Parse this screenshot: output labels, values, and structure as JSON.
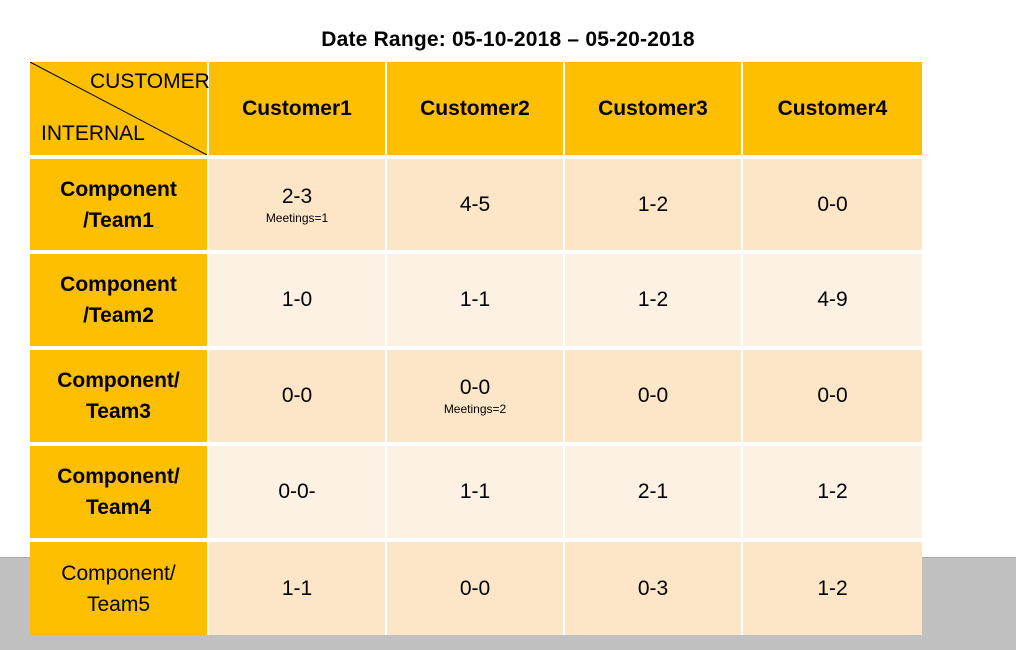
{
  "title": "Date Range: 05-10-2018 – 05-20-2018",
  "corner": {
    "top_label": "CUSTOMER",
    "bottom_label": "INTERNAL"
  },
  "columns": [
    "Customer1",
    "Customer2",
    "Customer3",
    "Customer4"
  ],
  "rows": [
    {
      "label_line1": "Component",
      "label_line2": "/Team1",
      "cells": [
        {
          "value": "2-3",
          "note": "Meetings=1"
        },
        {
          "value": "4-5",
          "note": ""
        },
        {
          "value": "1-2",
          "note": ""
        },
        {
          "value": "0-0",
          "note": ""
        }
      ]
    },
    {
      "label_line1": "Component",
      "label_line2": "/Team2",
      "cells": [
        {
          "value": "1-0",
          "note": ""
        },
        {
          "value": "1-1",
          "note": ""
        },
        {
          "value": "1-2",
          "note": ""
        },
        {
          "value": "4-9",
          "note": ""
        }
      ]
    },
    {
      "label_line1": "Component/",
      "label_line2": "Team3",
      "cells": [
        {
          "value": "0-0",
          "note": ""
        },
        {
          "value": "0-0",
          "note": "Meetings=2"
        },
        {
          "value": "0-0",
          "note": ""
        },
        {
          "value": "0-0",
          "note": ""
        }
      ]
    },
    {
      "label_line1": "Component/",
      "label_line2": "Team4",
      "cells": [
        {
          "value": "0-0-",
          "note": ""
        },
        {
          "value": "1-1",
          "note": ""
        },
        {
          "value": "2-1",
          "note": ""
        },
        {
          "value": "1-2",
          "note": ""
        }
      ]
    },
    {
      "label_line1": "Component/",
      "label_line2": "Team5",
      "cells": [
        {
          "value": "1-1",
          "note": ""
        },
        {
          "value": "0-0",
          "note": ""
        },
        {
          "value": "0-3",
          "note": ""
        },
        {
          "value": "1-2",
          "note": ""
        }
      ]
    }
  ],
  "colors": {
    "header": "#fdbf00",
    "row_dark": "#fde5c8",
    "row_light": "#fdf1e4",
    "background_band": "#c0c0c0"
  }
}
